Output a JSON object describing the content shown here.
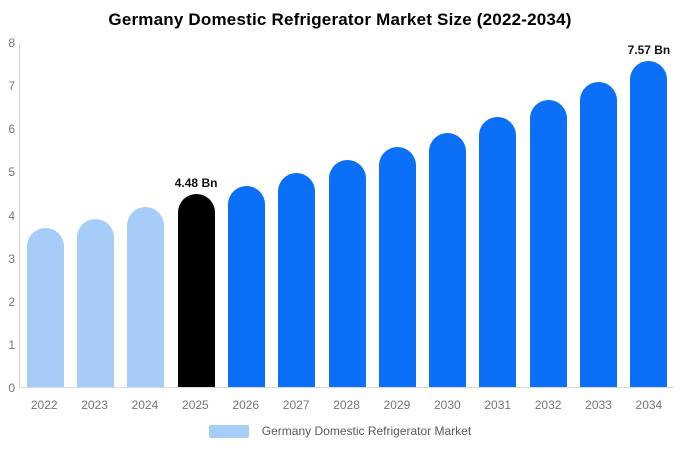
{
  "title": "Germany Domestic Refrigerator Market Size (2022-2034)",
  "colors": {
    "past_bar": "#a6cdf8",
    "base_year_bar": "#000000",
    "forecast_bar": "#0b6ff7",
    "axis_line": "#d9d9d9",
    "axis_text": "#757575",
    "legend_text": "#595959"
  },
  "chart_data": {
    "type": "bar",
    "title": "Germany Domestic Refrigerator Market Size (2022-2034)",
    "xlabel": "",
    "ylabel": "",
    "ylim": [
      0,
      8
    ],
    "yticks": [
      0,
      1,
      2,
      3,
      4,
      5,
      6,
      7,
      8
    ],
    "grid": false,
    "legend_position": "bottom",
    "categories": [
      "2022",
      "2023",
      "2024",
      "2025",
      "2026",
      "2027",
      "2028",
      "2029",
      "2030",
      "2031",
      "2032",
      "2033",
      "2034"
    ],
    "values": [
      3.69,
      3.89,
      4.18,
      4.48,
      4.66,
      4.96,
      5.26,
      5.57,
      5.89,
      6.26,
      6.65,
      7.08,
      7.57
    ],
    "bar_color_keys": [
      "past_bar",
      "past_bar",
      "past_bar",
      "base_year_bar",
      "forecast_bar",
      "forecast_bar",
      "forecast_bar",
      "forecast_bar",
      "forecast_bar",
      "forecast_bar",
      "forecast_bar",
      "forecast_bar",
      "forecast_bar"
    ],
    "data_labels": {
      "2025": "4.48 Bn",
      "2034": "7.57 Bn"
    },
    "unit": "Bn"
  },
  "legend": {
    "label": "Germany Domestic Refrigerator Market",
    "swatch_color": "#a6cdf8"
  }
}
